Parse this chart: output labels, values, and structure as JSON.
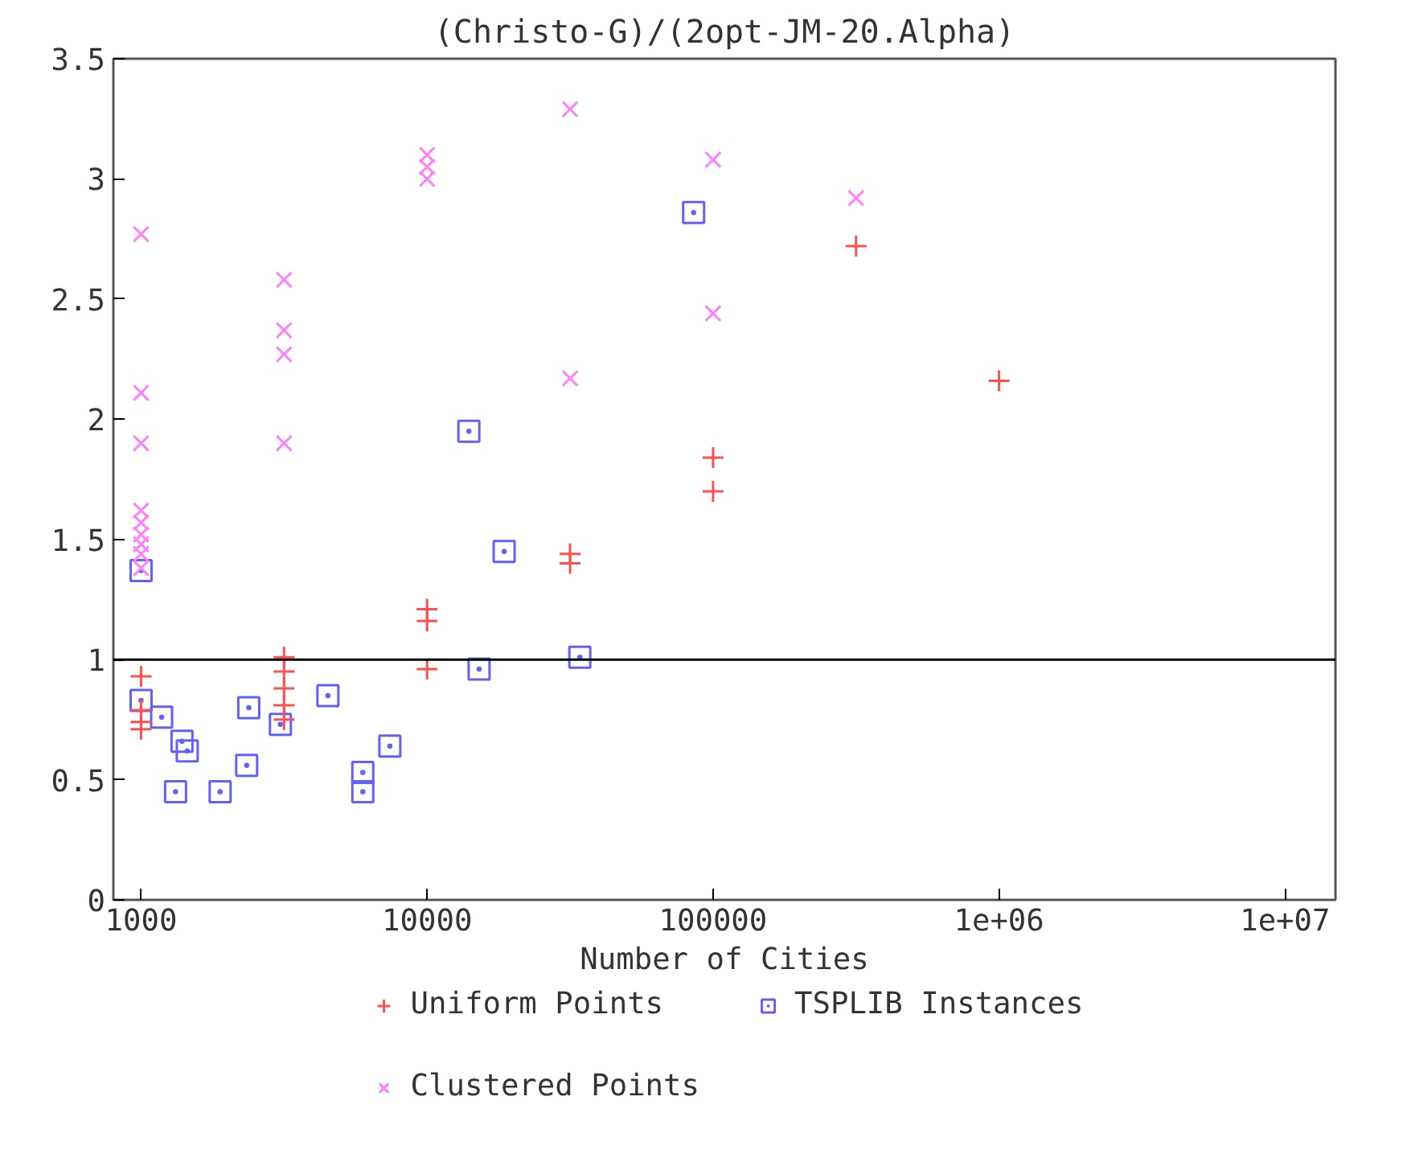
{
  "chart_data": {
    "type": "scatter",
    "title": "(Christo-G)/(2opt-JM-20.Alpha)",
    "xlabel": "Number of Cities",
    "log": "x",
    "xlim": [
      800,
      15000000
    ],
    "ylim": [
      0,
      3.5
    ],
    "xticks": [
      1000,
      10000,
      100000,
      {
        "value": 1000000,
        "label": "1e+06"
      },
      {
        "value": 10000000,
        "label": "1e+07"
      }
    ],
    "yticks": [
      0,
      0.5,
      1,
      1.5,
      2,
      2.5,
      3,
      3.5
    ],
    "grid": false,
    "legend": "bottom",
    "ref_lines": [
      {
        "axis": "y",
        "value": 1,
        "color": "#000000"
      }
    ],
    "series": [
      {
        "name": "Uniform Points",
        "color": "#ff5050",
        "marker": "cross",
        "x": [
          1000,
          1000,
          1000,
          1000,
          3162,
          3162,
          3162,
          3162,
          3162,
          10000,
          10000,
          10000,
          31623,
          31623,
          100000,
          100000,
          316228,
          1000000
        ],
        "values": [
          0.93,
          0.79,
          0.74,
          0.71,
          1.01,
          0.95,
          0.88,
          0.81,
          0.75,
          1.21,
          1.16,
          0.96,
          1.44,
          1.4,
          1.84,
          1.7,
          2.72,
          2.16
        ]
      },
      {
        "name": "Clustered Points",
        "color": "#ff80ff",
        "marker": "x",
        "x": [
          1000,
          1000,
          1000,
          1000,
          1000,
          1000,
          1000,
          1000,
          1000,
          3162,
          3162,
          3162,
          3162,
          10000,
          10000,
          10000,
          31623,
          31623,
          100000,
          100000,
          316228
        ],
        "values": [
          2.77,
          2.11,
          1.9,
          1.62,
          1.57,
          1.52,
          1.48,
          1.44,
          1.38,
          2.58,
          2.37,
          2.27,
          1.9,
          3.1,
          3.05,
          3.0,
          3.29,
          2.17,
          3.08,
          2.44,
          2.92
        ]
      },
      {
        "name": "TSPLIB Instances",
        "color": "#6060ff",
        "marker": "square",
        "x": [
          1000,
          1000,
          1180,
          1390,
          1450,
          1320,
          1890,
          2380,
          2340,
          3070,
          4500,
          5960,
          5960,
          7410,
          14000,
          18600,
          15200,
          34200,
          85500
        ],
        "values": [
          1.37,
          0.83,
          0.76,
          0.66,
          0.62,
          0.45,
          0.45,
          0.8,
          0.56,
          0.73,
          0.85,
          0.53,
          0.45,
          0.64,
          1.95,
          1.45,
          0.96,
          1.01,
          2.86
        ]
      }
    ]
  }
}
